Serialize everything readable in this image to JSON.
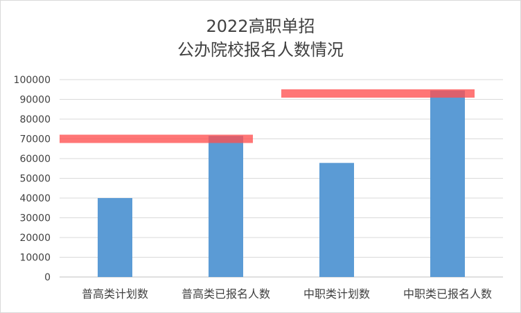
{
  "chart_data": {
    "type": "bar",
    "title_line1": "2022高职单招",
    "title_line2": "公办院校报名人数情况",
    "categories": [
      "普高类计划数",
      "普高类已报名人数",
      "中职类计划数",
      "中职类已报名人数"
    ],
    "values": [
      40000,
      71500,
      57800,
      94500
    ],
    "ylim": [
      0,
      100000
    ],
    "yticks": [
      "0",
      "10000",
      "20000",
      "30000",
      "40000",
      "50000",
      "60000",
      "70000",
      "80000",
      "90000",
      "100000"
    ],
    "grid": true,
    "legend": "none",
    "bar_color": "#5b9bd5",
    "annotations": [
      {
        "type": "highlight-line",
        "value": 70000,
        "from_category": 0,
        "to_category": 1,
        "color": "#ff5050"
      },
      {
        "type": "highlight-line",
        "value": 93000,
        "from_category": 2,
        "to_category": 3,
        "color": "#ff5050"
      }
    ]
  }
}
